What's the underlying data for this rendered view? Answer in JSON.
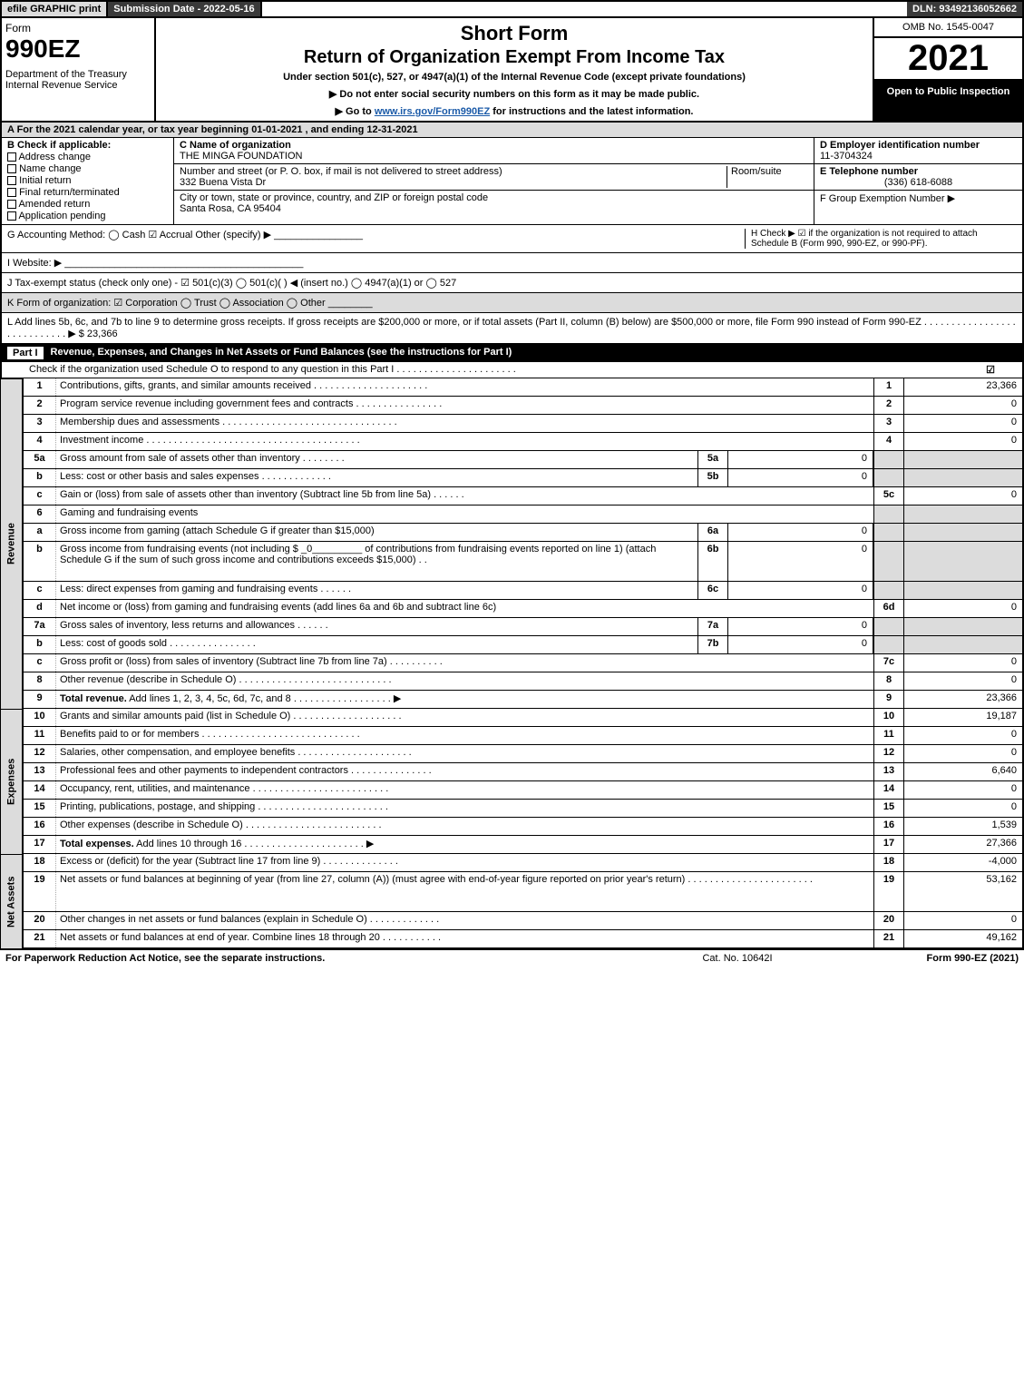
{
  "colors": {
    "background": "#ffffff",
    "text": "#000000",
    "header_dark": "#3a3a3a",
    "header_light": "#dcdcdc",
    "black_band": "#000000",
    "link": "#1a5aa8",
    "check_green": "#22aa66"
  },
  "topbar": {
    "efile": "efile GRAPHIC print",
    "submission": "Submission Date - 2022-05-16",
    "dln": "DLN: 93492136052662"
  },
  "header": {
    "form_label": "Form",
    "form_number": "990EZ",
    "department": "Department of the Treasury\nInternal Revenue Service",
    "title1": "Short Form",
    "title2": "Return of Organization Exempt From Income Tax",
    "subtitle": "Under section 501(c), 527, or 4947(a)(1) of the Internal Revenue Code (except private foundations)",
    "arrow1": "▶ Do not enter social security numbers on this form as it may be made public.",
    "arrow2": "▶ Go to www.irs.gov/Form990EZ for instructions and the latest information.",
    "omb": "OMB No. 1545-0047",
    "year": "2021",
    "open": "Open to Public Inspection"
  },
  "lineA": "A  For the 2021 calendar year, or tax year beginning 01-01-2021 , and ending 12-31-2021",
  "B": {
    "label": "B  Check if applicable:",
    "opts": [
      "Address change",
      "Name change",
      "Initial return",
      "Final return/terminated",
      "Amended return",
      "Application pending"
    ]
  },
  "C": {
    "name_label": "C Name of organization",
    "name": "THE MINGA FOUNDATION",
    "street_label": "Number and street (or P. O. box, if mail is not delivered to street address)",
    "room_label": "Room/suite",
    "street": "332 Buena Vista Dr",
    "city_label": "City or town, state or province, country, and ZIP or foreign postal code",
    "city": "Santa Rosa, CA  95404"
  },
  "D": {
    "label": "D Employer identification number",
    "value": "11-3704324"
  },
  "E": {
    "label": "E Telephone number",
    "value": "(336) 618-6088"
  },
  "F": {
    "label": "F Group Exemption Number  ▶"
  },
  "GH": {
    "G": "G Accounting Method:   ◯ Cash   ☑ Accrual   Other (specify) ▶ ________________",
    "H": "H   Check ▶ ☑ if the organization is not required to attach Schedule B (Form 990, 990-EZ, or 990-PF)."
  },
  "I": "I Website: ▶ ___________________________________________",
  "J": "J Tax-exempt status (check only one) - ☑ 501(c)(3)  ◯ 501(c)(  ) ◀ (insert no.)  ◯ 4947(a)(1) or  ◯ 527",
  "K": "K Form of organization:   ☑ Corporation   ◯ Trust   ◯ Association   ◯ Other  ________",
  "L": "L Add lines 5b, 6c, and 7b to line 9 to determine gross receipts. If gross receipts are $200,000 or more, or if total assets (Part II, column (B) below) are $500,000 or more, file Form 990 instead of Form 990-EZ  . . . . . . . . . . . . . . . . . . . . . . . . . . . .  ▶ $ 23,366",
  "part1": {
    "label": "Part I",
    "title": "Revenue, Expenses, and Changes in Net Assets or Fund Balances (see the instructions for Part I)",
    "check": "Check if the organization used Schedule O to respond to any question in this Part I . . . . . . . . . . . . . . . . . . . . . .",
    "checked": "☑"
  },
  "sides": {
    "rev": "Revenue",
    "exp": "Expenses",
    "na": "Net Assets"
  },
  "revenue": [
    {
      "n": "1",
      "d": "Contributions, gifts, grants, and similar amounts received  . . . . . . . . . . . . . . . . . . . . .",
      "rn": "1",
      "rv": "23,366"
    },
    {
      "n": "2",
      "d": "Program service revenue including government fees and contracts  . . . . . . . . . . . . . . . .",
      "rn": "2",
      "rv": "0"
    },
    {
      "n": "3",
      "d": "Membership dues and assessments  . . . . . . . . . . . . . . . . . . . . . . . . . . . . . . . .",
      "rn": "3",
      "rv": "0"
    },
    {
      "n": "4",
      "d": "Investment income  . . . . . . . . . . . . . . . . . . . . . . . . . . . . . . . . . . . . . . .",
      "rn": "4",
      "rv": "0"
    },
    {
      "n": "5a",
      "d": "Gross amount from sale of assets other than inventory  . . . . . . . .",
      "s1": "5a",
      "s1v": "0",
      "shade": true
    },
    {
      "n": "b",
      "d": "Less: cost or other basis and sales expenses  . . . . . . . . . . . . .",
      "s1": "5b",
      "s1v": "0",
      "shade": true
    },
    {
      "n": "c",
      "d": "Gain or (loss) from sale of assets other than inventory (Subtract line 5b from line 5a)  . . . . . .",
      "rn": "5c",
      "rv": "0"
    },
    {
      "n": "6",
      "d": "Gaming and fundraising events",
      "shade": true
    },
    {
      "n": "a",
      "d": "Gross income from gaming (attach Schedule G if greater than $15,000)",
      "s1": "6a",
      "s1v": "0",
      "shade": true
    },
    {
      "n": "b",
      "d": "Gross income from fundraising events (not including $ _0_________ of contributions from fundraising events reported on line 1) (attach Schedule G if the sum of such gross income and contributions exceeds $15,000)   . .",
      "s1": "6b",
      "s1v": "0",
      "shade": true,
      "tall": true
    },
    {
      "n": "c",
      "d": "Less: direct expenses from gaming and fundraising events  . . . . . .",
      "s1": "6c",
      "s1v": "0",
      "shade": true
    },
    {
      "n": "d",
      "d": "Net income or (loss) from gaming and fundraising events (add lines 6a and 6b and subtract line 6c)",
      "rn": "6d",
      "rv": "0"
    },
    {
      "n": "7a",
      "d": "Gross sales of inventory, less returns and allowances  . . . . . .",
      "s1": "7a",
      "s1v": "0",
      "shade": true
    },
    {
      "n": "b",
      "d": "Less: cost of goods sold        . . . . . . . . . . . . . . . .",
      "s1": "7b",
      "s1v": "0",
      "shade": true
    },
    {
      "n": "c",
      "d": "Gross profit or (loss) from sales of inventory (Subtract line 7b from line 7a)  . . . . . . . . . .",
      "rn": "7c",
      "rv": "0"
    },
    {
      "n": "8",
      "d": "Other revenue (describe in Schedule O)  . . . . . . . . . . . . . . . . . . . . . . . . . . . .",
      "rn": "8",
      "rv": "0"
    },
    {
      "n": "9",
      "d": "Total revenue. Add lines 1, 2, 3, 4, 5c, 6d, 7c, and 8  . . . . . . . . . . . . . . . . . .    ▶",
      "rn": "9",
      "rv": "23,366",
      "bold": true
    }
  ],
  "expenses": [
    {
      "n": "10",
      "d": "Grants and similar amounts paid (list in Schedule O)  . . . . . . . . . . . . . . . . . . . .",
      "rn": "10",
      "rv": "19,187"
    },
    {
      "n": "11",
      "d": "Benefits paid to or for members      . . . . . . . . . . . . . . . . . . . . . . . . . . . . .",
      "rn": "11",
      "rv": "0"
    },
    {
      "n": "12",
      "d": "Salaries, other compensation, and employee benefits . . . . . . . . . . . . . . . . . . . . .",
      "rn": "12",
      "rv": "0"
    },
    {
      "n": "13",
      "d": "Professional fees and other payments to independent contractors . . . . . . . . . . . . . . .",
      "rn": "13",
      "rv": "6,640"
    },
    {
      "n": "14",
      "d": "Occupancy, rent, utilities, and maintenance . . . . . . . . . . . . . . . . . . . . . . . . .",
      "rn": "14",
      "rv": "0"
    },
    {
      "n": "15",
      "d": "Printing, publications, postage, and shipping . . . . . . . . . . . . . . . . . . . . . . . .",
      "rn": "15",
      "rv": "0"
    },
    {
      "n": "16",
      "d": "Other expenses (describe in Schedule O)     . . . . . . . . . . . . . . . . . . . . . . . . .",
      "rn": "16",
      "rv": "1,539"
    },
    {
      "n": "17",
      "d": "Total expenses. Add lines 10 through 16     . . . . . . . . . . . . . . . . . . . . . .    ▶",
      "rn": "17",
      "rv": "27,366",
      "bold": true
    }
  ],
  "netassets": [
    {
      "n": "18",
      "d": "Excess or (deficit) for the year (Subtract line 17 from line 9)       . . . . . . . . . . . . . .",
      "rn": "18",
      "rv": "-4,000"
    },
    {
      "n": "19",
      "d": "Net assets or fund balances at beginning of year (from line 27, column (A)) (must agree with end-of-year figure reported on prior year's return) . . . . . . . . . . . . . . . . . . . . . . .",
      "rn": "19",
      "rv": "53,162",
      "tall": true
    },
    {
      "n": "20",
      "d": "Other changes in net assets or fund balances (explain in Schedule O) . . . . . . . . . . . . .",
      "rn": "20",
      "rv": "0"
    },
    {
      "n": "21",
      "d": "Net assets or fund balances at end of year. Combine lines 18 through 20 . . . . . . . . . . .",
      "rn": "21",
      "rv": "49,162"
    }
  ],
  "footer": {
    "left": "For Paperwork Reduction Act Notice, see the separate instructions.",
    "mid": "Cat. No. 10642I",
    "right": "Form 990-EZ (2021)"
  }
}
